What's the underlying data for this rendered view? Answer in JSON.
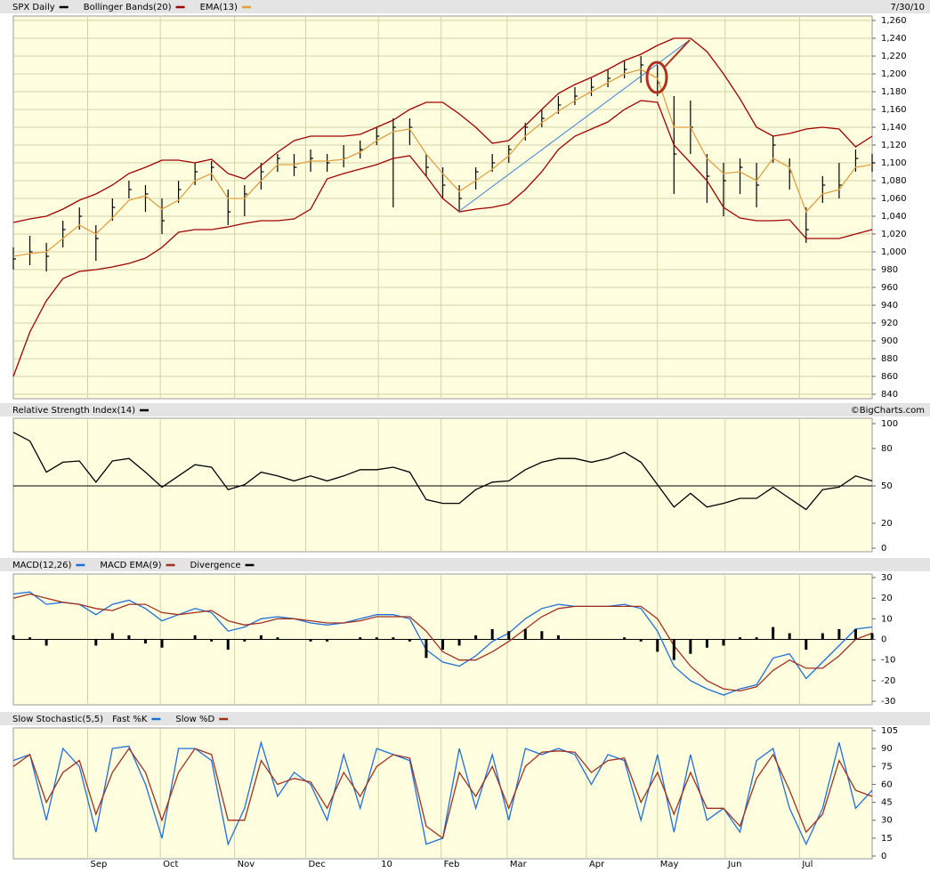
{
  "chart_data": [
    {
      "type": "ohlc",
      "annotation": "7/30/10",
      "x": [
        0,
        1,
        2,
        3,
        4,
        5,
        6,
        7,
        8,
        9,
        10,
        11,
        12,
        13,
        14,
        15,
        16,
        17,
        18,
        19,
        20,
        21,
        22,
        23,
        24,
        25,
        26,
        27,
        28,
        29,
        30,
        31,
        32,
        33,
        34,
        35,
        36,
        37,
        38,
        39,
        40,
        41,
        42,
        43,
        44,
        45,
        46,
        47,
        48,
        49,
        50,
        51,
        52
      ],
      "xlim": [
        0,
        52
      ],
      "ylim": [
        840,
        1260
      ],
      "yticks": [
        840,
        860,
        880,
        900,
        920,
        940,
        960,
        980,
        {
          "value": 1000,
          "label": "1,000"
        },
        {
          "value": 1020,
          "label": "1,020"
        },
        {
          "value": 1040,
          "label": "1,040"
        },
        {
          "value": 1060,
          "label": "1,060"
        },
        {
          "value": 1080,
          "label": "1,080"
        },
        {
          "value": 1100,
          "label": "1,100"
        },
        {
          "value": 1120,
          "label": "1,120"
        },
        {
          "value": 1140,
          "label": "1,140"
        },
        {
          "value": 1160,
          "label": "1,160"
        },
        {
          "value": 1180,
          "label": "1,180"
        },
        {
          "value": 1200,
          "label": "1,200"
        },
        {
          "value": 1220,
          "label": "1,220"
        },
        {
          "value": 1240,
          "label": "1,240"
        },
        {
          "value": 1260,
          "label": "1,260"
        }
      ],
      "grid": true,
      "series": [
        {
          "name": "SPX Daily",
          "color": "#000000",
          "high": [
            1005,
            1018,
            1010,
            1035,
            1050,
            1030,
            1060,
            1080,
            1075,
            1060,
            1080,
            1100,
            1102,
            1070,
            1075,
            1100,
            1110,
            1110,
            1115,
            1110,
            1120,
            1125,
            1140,
            1150,
            1150,
            1110,
            1095,
            1075,
            1095,
            1110,
            1120,
            1145,
            1160,
            1175,
            1185,
            1195,
            1205,
            1215,
            1220,
            1210,
            1175,
            1170,
            1110,
            1100,
            1105,
            1100,
            1130,
            1105,
            1050,
            1085,
            1100,
            1115,
            1110
          ],
          "low": [
            980,
            985,
            978,
            1005,
            1025,
            990,
            1035,
            1060,
            1045,
            1020,
            1055,
            1075,
            1080,
            1030,
            1040,
            1070,
            1090,
            1085,
            1090,
            1090,
            1095,
            1105,
            1120,
            1050,
            1120,
            1085,
            1060,
            1045,
            1070,
            1090,
            1100,
            1125,
            1140,
            1155,
            1165,
            1175,
            1185,
            1195,
            1190,
            1175,
            1065,
            1110,
            1055,
            1040,
            1065,
            1050,
            1100,
            1070,
            1010,
            1055,
            1060,
            1090,
            1090
          ],
          "close": [
            992,
            1000,
            995,
            1025,
            1040,
            1015,
            1050,
            1070,
            1065,
            1035,
            1070,
            1090,
            1095,
            1045,
            1065,
            1090,
            1105,
            1095,
            1105,
            1100,
            1105,
            1115,
            1130,
            1140,
            1140,
            1095,
            1075,
            1060,
            1090,
            1100,
            1115,
            1140,
            1150,
            1165,
            1175,
            1185,
            1195,
            1205,
            1210,
            1190,
            1110,
            1140,
            1085,
            1080,
            1095,
            1075,
            1120,
            1090,
            1025,
            1075,
            1075,
            1105,
            1100
          ]
        },
        {
          "name": "Bollinger Bands(20)",
          "color": "#a00000",
          "upper": [
            1033,
            1037,
            1040,
            1048,
            1058,
            1065,
            1075,
            1088,
            1095,
            1103,
            1103,
            1100,
            1104,
            1088,
            1082,
            1097,
            1112,
            1125,
            1130,
            1130,
            1130,
            1132,
            1140,
            1148,
            1160,
            1168,
            1168,
            1155,
            1140,
            1122,
            1125,
            1142,
            1160,
            1178,
            1188,
            1196,
            1205,
            1215,
            1222,
            1232,
            1240,
            1240,
            1225,
            1200,
            1172,
            1140,
            1130,
            1133,
            1138,
            1140,
            1138,
            1118,
            1130
          ],
          "lower": [
            860,
            910,
            945,
            970,
            978,
            980,
            983,
            987,
            993,
            1005,
            1022,
            1025,
            1025,
            1028,
            1032,
            1035,
            1035,
            1037,
            1048,
            1082,
            1088,
            1093,
            1098,
            1105,
            1108,
            1085,
            1060,
            1045,
            1048,
            1050,
            1054,
            1070,
            1090,
            1115,
            1130,
            1138,
            1146,
            1160,
            1170,
            1168,
            1120,
            1100,
            1080,
            1050,
            1038,
            1035,
            1035,
            1036,
            1015,
            1015,
            1015,
            1020,
            1025
          ]
        },
        {
          "name": "EMA(13)",
          "color": "#e0a040",
          "values": [
            995,
            998,
            1000,
            1015,
            1030,
            1020,
            1038,
            1058,
            1063,
            1048,
            1058,
            1080,
            1088,
            1060,
            1060,
            1080,
            1098,
            1098,
            1102,
            1102,
            1104,
            1112,
            1125,
            1135,
            1138,
            1110,
            1088,
            1068,
            1080,
            1093,
            1108,
            1130,
            1145,
            1158,
            1170,
            1180,
            1190,
            1200,
            1205,
            1195,
            1140,
            1140,
            1105,
            1088,
            1090,
            1080,
            1105,
            1095,
            1045,
            1065,
            1070,
            1095,
            1098
          ]
        }
      ]
    },
    {
      "type": "line",
      "annotation": "©BigCharts.com",
      "ylim": [
        0,
        100
      ],
      "yticks": [
        0,
        20,
        50,
        80,
        100
      ],
      "hline": 50,
      "series": [
        {
          "name": "Relative Strength Index(14)",
          "color": "#000000",
          "values": [
            93,
            86,
            61,
            69,
            70,
            53,
            70,
            72,
            61,
            49,
            58,
            67,
            65,
            47,
            51,
            61,
            58,
            54,
            58,
            54,
            58,
            63,
            63,
            65,
            61,
            39,
            36,
            36,
            47,
            53,
            54,
            63,
            69,
            72,
            72,
            69,
            72,
            77,
            69,
            51,
            33,
            44,
            33,
            36,
            40,
            40,
            49,
            40,
            31,
            47,
            49,
            58,
            54
          ]
        }
      ]
    },
    {
      "type": "line",
      "ylim": [
        -30,
        30
      ],
      "yticks": [
        -30,
        -20,
        -10,
        0,
        10,
        20,
        30
      ],
      "hline": 0,
      "series": [
        {
          "name": "MACD(12,26)",
          "color": "#1f6fdb",
          "values": [
            22,
            23,
            17,
            18,
            17,
            12,
            17,
            19,
            15,
            9,
            12,
            15,
            13,
            4,
            6,
            10,
            11,
            10,
            8,
            7,
            8,
            10,
            12,
            12,
            10,
            -5,
            -11,
            -13,
            -8,
            -1,
            3,
            10,
            15,
            17,
            16,
            16,
            16,
            17,
            15,
            4,
            -13,
            -20,
            -24,
            -27,
            -24,
            -22,
            -9,
            -7,
            -19,
            -11,
            -3,
            5,
            6
          ]
        },
        {
          "name": "MACD EMA(9)",
          "color": "#a03020",
          "values": [
            20,
            22,
            20,
            18,
            17,
            15,
            14,
            17,
            17,
            13,
            12,
            13,
            14,
            9,
            7,
            8,
            10,
            10,
            9,
            8,
            8,
            9,
            11,
            11,
            11,
            4,
            -6,
            -10,
            -10,
            -6,
            -1,
            5,
            11,
            15,
            16,
            16,
            16,
            16,
            16,
            10,
            -3,
            -13,
            -20,
            -24,
            -25,
            -23,
            -15,
            -10,
            -14,
            -14,
            -8,
            0,
            3
          ]
        },
        {
          "name": "Divergence",
          "color": "#000000",
          "type": "bar",
          "values": [
            2,
            1,
            -3,
            0,
            0,
            -3,
            3,
            2,
            -2,
            -4,
            0,
            2,
            -1,
            -5,
            -1,
            2,
            1,
            0,
            -1,
            -1,
            0,
            1,
            1,
            1,
            -1,
            -9,
            -5,
            -3,
            2,
            5,
            4,
            5,
            4,
            2,
            0,
            0,
            0,
            1,
            -1,
            -6,
            -10,
            -7,
            -4,
            -3,
            1,
            1,
            6,
            3,
            -5,
            3,
            5,
            5,
            3
          ]
        }
      ]
    },
    {
      "type": "line",
      "title": "Slow Stochastic(5,5)",
      "ylim": [
        0,
        105
      ],
      "yticks": [
        0,
        15,
        30,
        45,
        60,
        75,
        90,
        105
      ],
      "xticks": [
        {
          "value": 4.5,
          "label": "Sep"
        },
        {
          "value": 8.9,
          "label": "Oct"
        },
        {
          "value": 13.4,
          "label": "Nov"
        },
        {
          "value": 17.7,
          "label": "Dec"
        },
        {
          "value": 22.1,
          "label": "10"
        },
        {
          "value": 25.9,
          "label": "Feb"
        },
        {
          "value": 29.9,
          "label": "Mar"
        },
        {
          "value": 34.7,
          "label": "Apr"
        },
        {
          "value": 39,
          "label": "May"
        },
        {
          "value": 43.1,
          "label": "Jun"
        },
        {
          "value": 47.6,
          "label": "Jul"
        }
      ],
      "series": [
        {
          "name": "Fast %K",
          "color": "#1f6fdb",
          "values": [
            80,
            85,
            30,
            90,
            75,
            20,
            90,
            92,
            60,
            15,
            90,
            90,
            80,
            10,
            40,
            95,
            50,
            70,
            60,
            30,
            85,
            40,
            90,
            85,
            80,
            10,
            15,
            90,
            40,
            85,
            30,
            90,
            85,
            90,
            85,
            60,
            85,
            80,
            30,
            85,
            20,
            85,
            30,
            40,
            20,
            80,
            90,
            40,
            10,
            40,
            95,
            40,
            55
          ]
        },
        {
          "name": "Slow %D",
          "color": "#a03020",
          "values": [
            75,
            85,
            45,
            70,
            80,
            35,
            70,
            90,
            70,
            30,
            70,
            90,
            85,
            30,
            30,
            80,
            60,
            65,
            62,
            40,
            70,
            50,
            75,
            85,
            82,
            25,
            15,
            70,
            50,
            75,
            40,
            75,
            87,
            88,
            87,
            70,
            80,
            82,
            45,
            70,
            35,
            70,
            40,
            40,
            25,
            65,
            85,
            55,
            20,
            35,
            80,
            55,
            50
          ]
        }
      ]
    }
  ]
}
